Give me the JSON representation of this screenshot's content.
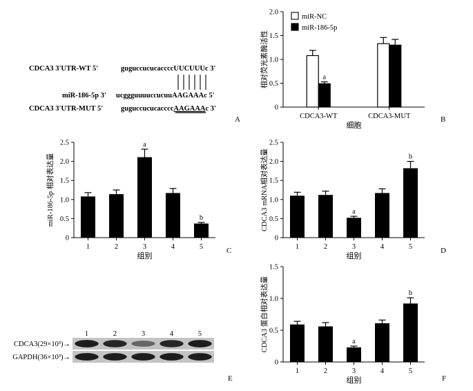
{
  "panel_a": {
    "letter": "A",
    "wt": {
      "label": "CDCA3  3'UTR-WT  5'",
      "seq_lower": "guguccucucacccc",
      "seq_upper": "UUCUUU",
      "seq_tail": "c  3'"
    },
    "mir": {
      "label": "miR-186-5p 3'",
      "seq_lower": "ucggguuuuccucuu",
      "seq_upper": "AAGAAA",
      "seq_tail": "c  5'"
    },
    "mut": {
      "label": "CDCA3  3'UTR-MUT  5'",
      "seq_lower": "guguccucucacccc",
      "seq_upper": "AAGAAA",
      "seq_tail": "c  3'"
    },
    "pair_count": 6
  },
  "panels": [
    {
      "letter": "B",
      "chart_data": {
        "type": "bar",
        "categories": [
          "CDCA3-WT",
          "CDCA3-MUT"
        ],
        "series": [
          {
            "name": "miR-NC",
            "values": [
              1.08,
              1.33
            ],
            "errors": [
              0.11,
              0.13
            ],
            "color": "#ffffff"
          },
          {
            "name": "miR-186-5p",
            "values": [
              0.49,
              1.3
            ],
            "errors": [
              0.04,
              0.12
            ],
            "color": "#000000"
          }
        ],
        "annotations": [
          {
            "series": 1,
            "index": 0,
            "text": "a"
          }
        ],
        "xlabel": "细胞",
        "ylabel": "相对荧光素酶活性",
        "ylim": [
          0,
          2.0
        ],
        "yticks": [
          "0",
          "0.5",
          "1.0",
          "1.5",
          "2.0"
        ],
        "legend": "top-left"
      }
    },
    {
      "letter": "C",
      "chart_data": {
        "type": "bar",
        "categories": [
          "1",
          "2",
          "3",
          "4",
          "5"
        ],
        "values": [
          1.08,
          1.14,
          2.11,
          1.17,
          0.37
        ],
        "errors": [
          0.1,
          0.11,
          0.21,
          0.12,
          0.03
        ],
        "annotations": [
          {
            "index": 2,
            "text": "a"
          },
          {
            "index": 4,
            "text": "b"
          }
        ],
        "xlabel": "组别",
        "ylabel": "miR-186-5p 相对表达量",
        "ylim": [
          0,
          2.5
        ],
        "yticks": [
          "0",
          "0.5",
          "1.0",
          "1.5",
          "2.0",
          "2.5"
        ]
      }
    },
    {
      "letter": "D",
      "chart_data": {
        "type": "bar",
        "categories": [
          "1",
          "2",
          "3",
          "4",
          "5"
        ],
        "values": [
          1.1,
          1.12,
          0.52,
          1.17,
          1.82
        ],
        "errors": [
          0.09,
          0.1,
          0.04,
          0.11,
          0.18
        ],
        "annotations": [
          {
            "index": 2,
            "text": "a"
          },
          {
            "index": 4,
            "text": "b"
          }
        ],
        "xlabel": "组别",
        "ylabel": "CDCA3 mRNA相对表达量",
        "ylim": [
          0,
          2.5
        ],
        "yticks": [
          "0",
          "0.5",
          "1.0",
          "1.5",
          "2.0",
          "2.5"
        ]
      }
    },
    {
      "letter": "F",
      "chart_data": {
        "type": "bar",
        "categories": [
          "1",
          "2",
          "3",
          "4",
          "5"
        ],
        "values": [
          0.59,
          0.56,
          0.23,
          0.61,
          0.92
        ],
        "errors": [
          0.05,
          0.06,
          0.02,
          0.05,
          0.09
        ],
        "annotations": [
          {
            "index": 2,
            "text": "a"
          },
          {
            "index": 4,
            "text": "b"
          }
        ],
        "xlabel": "组别",
        "ylabel": "CDCA3 蛋白相对表达量",
        "ylim": [
          0,
          1.5
        ],
        "yticks": [
          "0",
          "0.5",
          "1.0",
          "1.5"
        ]
      }
    }
  ],
  "panel_e": {
    "letter": "E",
    "lanes": [
      "1",
      "2",
      "3",
      "4",
      "5"
    ],
    "rows": [
      {
        "label": "CDCA3(29×10³)→",
        "band_intensity": [
          0.95,
          0.9,
          0.55,
          0.9,
          0.95
        ]
      },
      {
        "label": "GAPDH(36×10³)→",
        "band_intensity": [
          0.95,
          0.95,
          0.95,
          0.95,
          0.95
        ]
      }
    ]
  }
}
